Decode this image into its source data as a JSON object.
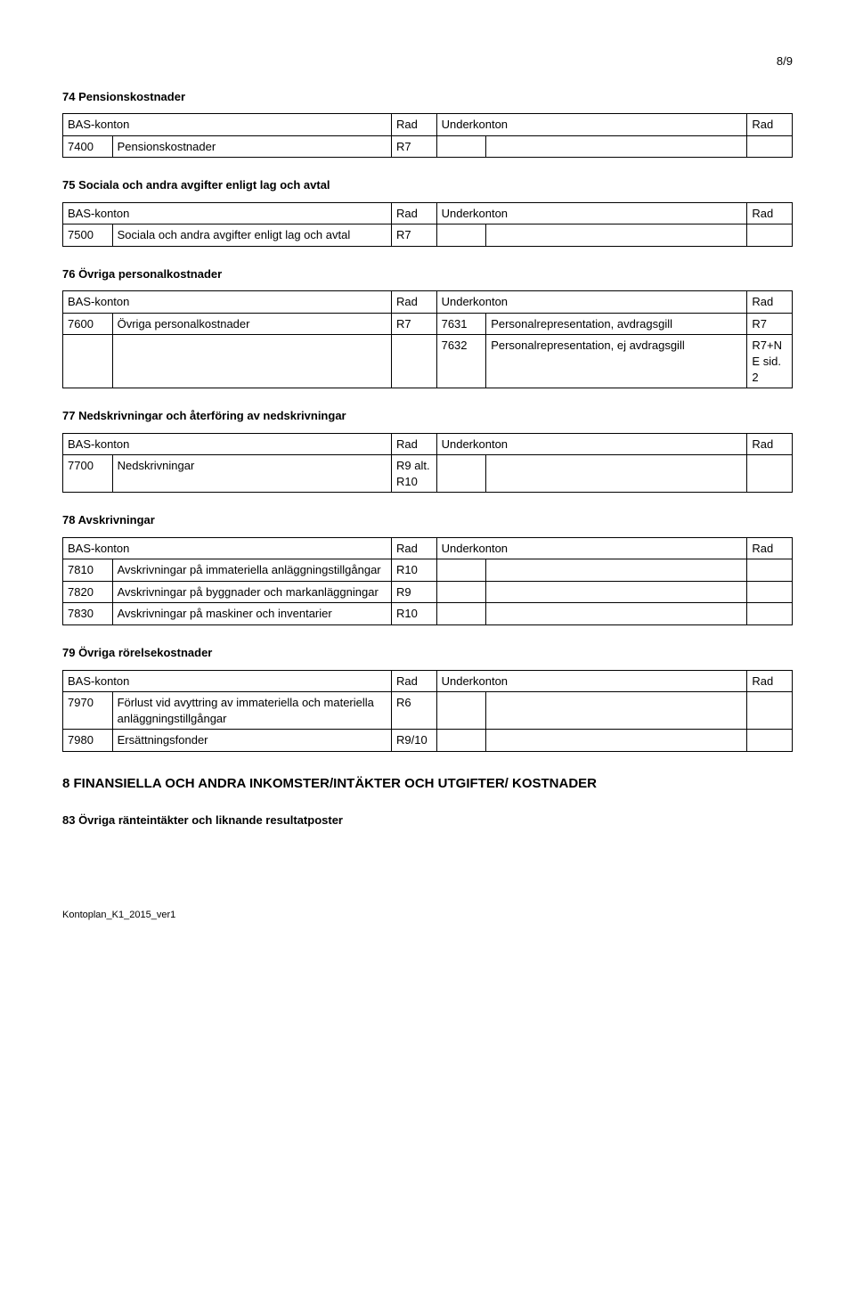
{
  "page_number": "8/9",
  "footer": "Kontoplan_K1_2015_ver1",
  "headers": {
    "bas": "BAS-konton",
    "rad": "Rad",
    "under": "Underkonton"
  },
  "big_heading": "8 FINANSIELLA OCH ANDRA INKOMSTER/INTÄKTER OCH UTGIFTER/ KOSTNADER",
  "sections": {
    "s74": {
      "title": "74 Pensionskostnader",
      "rows": [
        {
          "code": "7400",
          "desc": "Pensionskostnader",
          "rad": "R7",
          "scode": "",
          "sdesc": "",
          "srad": ""
        }
      ]
    },
    "s75": {
      "title": "75 Sociala och andra avgifter enligt lag och avtal",
      "rows": [
        {
          "code": "7500",
          "desc": "Sociala och andra avgifter enligt lag och avtal",
          "rad": "R7",
          "scode": "",
          "sdesc": "",
          "srad": ""
        }
      ]
    },
    "s76": {
      "title": "76 Övriga personalkostnader",
      "rows": [
        {
          "code": "7600",
          "desc": "Övriga personalkostnader",
          "rad": "R7",
          "scode": "7631",
          "sdesc": "Personalrepresentation, avdragsgill",
          "srad": "R7"
        },
        {
          "code": "",
          "desc": "",
          "rad": "",
          "scode": "7632",
          "sdesc": "Personalrepresentation, ej avdragsgill",
          "srad": "R7+NE sid. 2"
        }
      ]
    },
    "s77": {
      "title": "77 Nedskrivningar och återföring av nedskrivningar",
      "rows": [
        {
          "code": "7700",
          "desc": "Nedskrivningar",
          "rad": "R9 alt. R10",
          "scode": "",
          "sdesc": "",
          "srad": ""
        }
      ]
    },
    "s78": {
      "title": "78 Avskrivningar",
      "rows": [
        {
          "code": "7810",
          "desc": "Avskrivningar på immateriella anläggningstillgångar",
          "rad": "R10",
          "scode": "",
          "sdesc": "",
          "srad": ""
        },
        {
          "code": "7820",
          "desc": "Avskrivningar på byggnader och markanläggningar",
          "rad": "R9",
          "scode": "",
          "sdesc": "",
          "srad": ""
        },
        {
          "code": "7830",
          "desc": "Avskrivningar på maskiner och inventarier",
          "rad": "R10",
          "scode": "",
          "sdesc": "",
          "srad": ""
        }
      ]
    },
    "s79": {
      "title": "79 Övriga rörelsekostnader",
      "rows": [
        {
          "code": "7970",
          "desc": "Förlust vid avyttring av immateriella och materiella anläggningstillgångar",
          "rad": "R6",
          "scode": "",
          "sdesc": "",
          "srad": ""
        },
        {
          "code": "7980",
          "desc": "Ersättningsfonder",
          "rad": "R9/10",
          "scode": "",
          "sdesc": "",
          "srad": ""
        }
      ]
    },
    "s83": {
      "title": "83 Övriga ränteintäkter och liknande resultatposter"
    }
  }
}
